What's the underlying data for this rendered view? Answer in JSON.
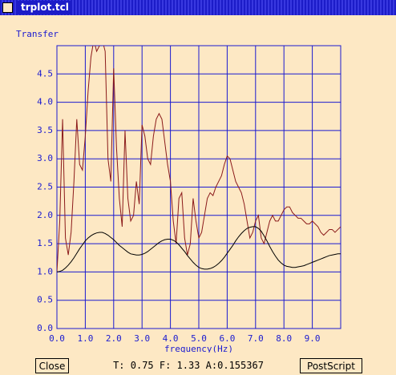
{
  "window": {
    "title": "trplot.tcl"
  },
  "chart_data": {
    "type": "line",
    "ylabel": "Transfer",
    "xlabel": "frequency(Hz)",
    "xlim": [
      0,
      10
    ],
    "ylim": [
      0,
      5
    ],
    "grid": true,
    "grid_color": "#1a1ad0",
    "xticks": [
      {
        "value": 0,
        "label": "0.0"
      },
      {
        "value": 1,
        "label": "1.0"
      },
      {
        "value": 2,
        "label": "2.0"
      },
      {
        "value": 3,
        "label": "3.0"
      },
      {
        "value": 4,
        "label": "4.0"
      },
      {
        "value": 5,
        "label": "5.0"
      },
      {
        "value": 6,
        "label": "6.0"
      },
      {
        "value": 7,
        "label": "7.0"
      },
      {
        "value": 8,
        "label": "8.0"
      },
      {
        "value": 9,
        "label": "9.0"
      }
    ],
    "yticks": [
      {
        "value": 0,
        "label": "0.0"
      },
      0.5,
      {
        "value": 1,
        "label": "1.0"
      },
      1.5,
      {
        "value": 2,
        "label": "2.0"
      },
      2.5,
      {
        "value": 3,
        "label": "3.0"
      },
      3.5,
      {
        "value": 4,
        "label": "4.0"
      },
      4.5
    ],
    "x": [
      0,
      0.1,
      0.2,
      0.3,
      0.4,
      0.5,
      0.6,
      0.7,
      0.8,
      0.9,
      1,
      1.1,
      1.2,
      1.3,
      1.4,
      1.5,
      1.6,
      1.7,
      1.8,
      1.9,
      2,
      2.1,
      2.2,
      2.3,
      2.4,
      2.5,
      2.6,
      2.7,
      2.8,
      2.9,
      3,
      3.1,
      3.2,
      3.3,
      3.4,
      3.5,
      3.6,
      3.7,
      3.8,
      3.9,
      4,
      4.1,
      4.2,
      4.3,
      4.4,
      4.5,
      4.6,
      4.7,
      4.8,
      4.9,
      5,
      5.1,
      5.2,
      5.3,
      5.4,
      5.5,
      5.6,
      5.7,
      5.8,
      5.9,
      6,
      6.1,
      6.2,
      6.3,
      6.4,
      6.5,
      6.6,
      6.7,
      6.8,
      6.9,
      7,
      7.1,
      7.2,
      7.3,
      7.4,
      7.5,
      7.6,
      7.7,
      7.8,
      7.9,
      8,
      8.1,
      8.2,
      8.3,
      8.4,
      8.5,
      8.6,
      8.7,
      8.8,
      8.9,
      9,
      9.1,
      9.2,
      9.3,
      9.4,
      9.5,
      9.6,
      9.7,
      9.8,
      9.9,
      10
    ],
    "series": [
      {
        "color": "#8b1a1a",
        "values": [
          1.0,
          1.9,
          3.7,
          1.6,
          1.3,
          1.7,
          2.6,
          3.7,
          2.9,
          2.8,
          3.4,
          4.2,
          4.8,
          5.1,
          4.9,
          5.0,
          5.1,
          4.9,
          3.0,
          2.6,
          4.6,
          3.2,
          2.3,
          1.8,
          3.5,
          2.3,
          1.9,
          2.0,
          2.6,
          2.2,
          3.6,
          3.4,
          3.0,
          2.9,
          3.4,
          3.7,
          3.8,
          3.7,
          3.3,
          2.9,
          2.6,
          1.9,
          1.5,
          2.3,
          2.4,
          1.6,
          1.3,
          1.5,
          2.3,
          1.9,
          1.6,
          1.7,
          2.0,
          2.3,
          2.4,
          2.35,
          2.5,
          2.6,
          2.7,
          2.9,
          3.05,
          3.0,
          2.8,
          2.6,
          2.5,
          2.4,
          2.2,
          1.9,
          1.6,
          1.7,
          1.9,
          2.0,
          1.6,
          1.5,
          1.7,
          1.9,
          2.0,
          1.9,
          1.9,
          2.0,
          2.1,
          2.15,
          2.15,
          2.05,
          2.0,
          1.95,
          1.95,
          1.9,
          1.85,
          1.85,
          1.9,
          1.85,
          1.8,
          1.7,
          1.65,
          1.7,
          1.75,
          1.75,
          1.7,
          1.75,
          1.8
        ]
      },
      {
        "color": "#000000",
        "values": [
          1.0,
          1.01,
          1.03,
          1.07,
          1.12,
          1.18,
          1.25,
          1.33,
          1.41,
          1.48,
          1.55,
          1.6,
          1.64,
          1.67,
          1.69,
          1.7,
          1.7,
          1.68,
          1.65,
          1.61,
          1.57,
          1.52,
          1.47,
          1.43,
          1.39,
          1.35,
          1.32,
          1.31,
          1.3,
          1.3,
          1.31,
          1.33,
          1.36,
          1.4,
          1.44,
          1.48,
          1.52,
          1.55,
          1.57,
          1.58,
          1.58,
          1.56,
          1.53,
          1.48,
          1.42,
          1.36,
          1.29,
          1.23,
          1.17,
          1.12,
          1.08,
          1.06,
          1.05,
          1.05,
          1.06,
          1.08,
          1.11,
          1.15,
          1.2,
          1.26,
          1.33,
          1.4,
          1.47,
          1.55,
          1.62,
          1.68,
          1.73,
          1.77,
          1.79,
          1.8,
          1.8,
          1.77,
          1.72,
          1.64,
          1.55,
          1.45,
          1.36,
          1.28,
          1.21,
          1.16,
          1.12,
          1.1,
          1.09,
          1.08,
          1.08,
          1.09,
          1.1,
          1.11,
          1.13,
          1.15,
          1.17,
          1.19,
          1.21,
          1.23,
          1.25,
          1.27,
          1.29,
          1.3,
          1.31,
          1.32,
          1.32
        ]
      }
    ]
  },
  "controls": {
    "close": "Close",
    "status": "T: 0.75 F: 1.33 A:0.155367",
    "postscript": "PostScript"
  }
}
